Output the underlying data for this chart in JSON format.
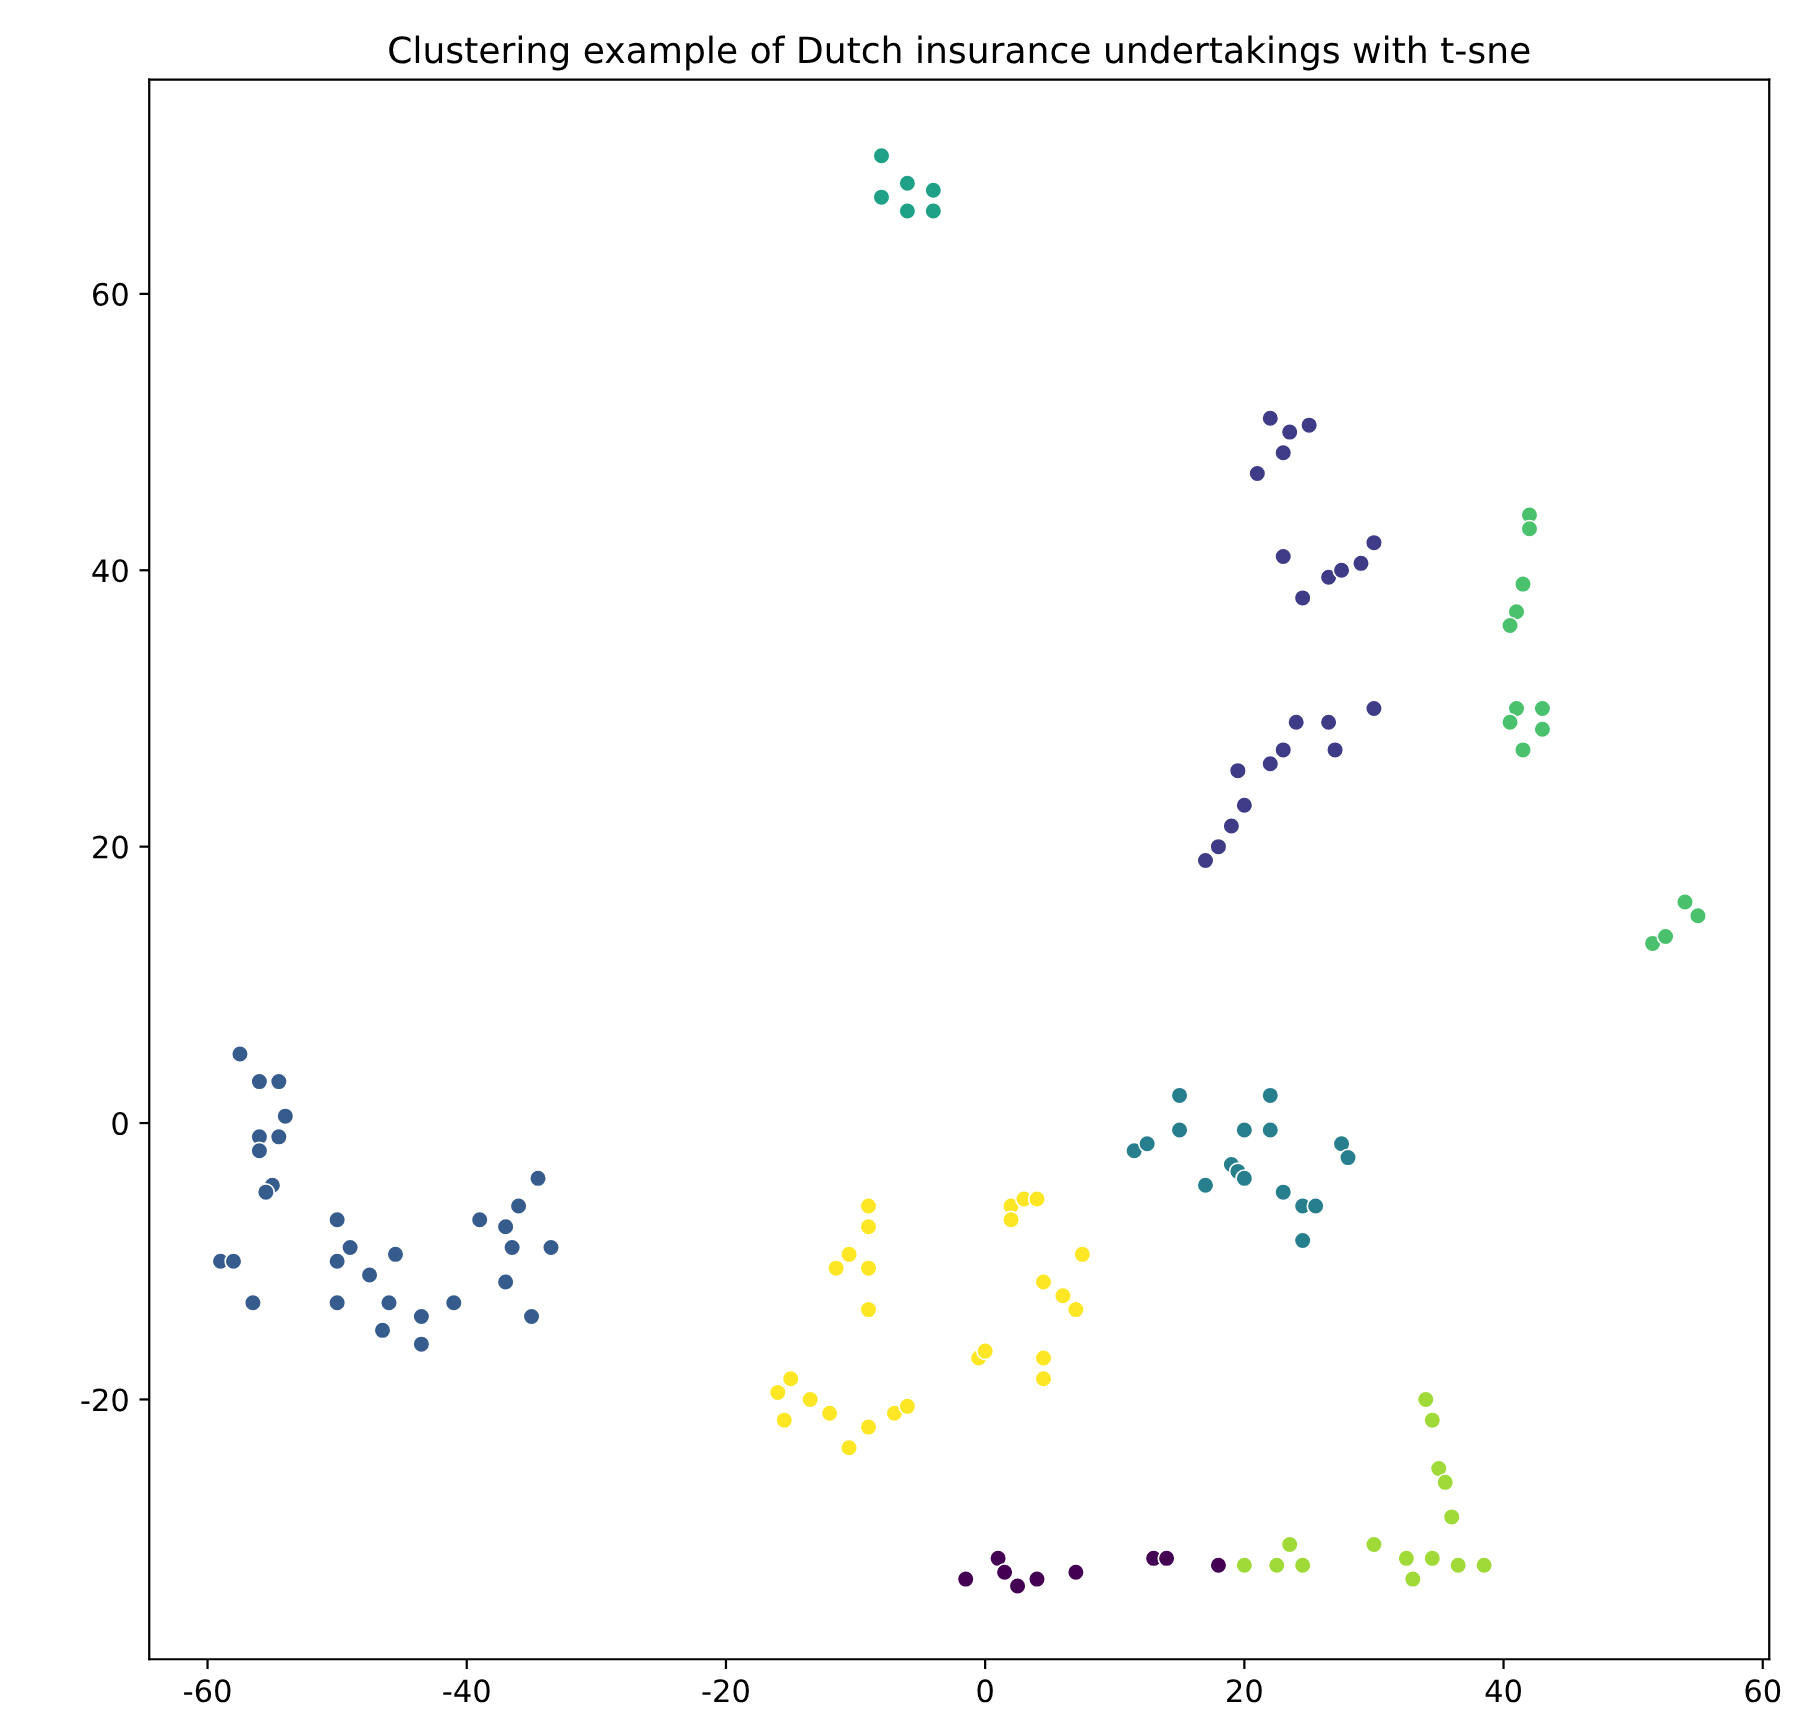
{
  "chart_data": {
    "type": "scatter",
    "title": "Clustering example of Dutch insurance undertakings with t-sne",
    "xlim": [
      -64.5,
      60.5
    ],
    "ylim": [
      -38.8,
      75.5
    ],
    "xticks": [
      -60,
      -40,
      -20,
      0,
      20,
      40,
      60
    ],
    "yticks": [
      -20,
      0,
      20,
      40,
      60
    ],
    "grid": false,
    "marker": "circle",
    "series": [
      {
        "color": "#440154",
        "x": [
          -1.5,
          1,
          1.5,
          2.5,
          4,
          7,
          13,
          14,
          18
        ],
        "values": [
          -33,
          -31.5,
          -32.5,
          -33.5,
          -33,
          -32.5,
          -31.5,
          -31.5,
          -32
        ]
      },
      {
        "color": "#3e3b87",
        "x": [
          22,
          23.5,
          25,
          23,
          21,
          23,
          24.5,
          26.5,
          27.5,
          29,
          30,
          17,
          18,
          19,
          20,
          19.5,
          22,
          23,
          24,
          26.5,
          27,
          30
        ],
        "values": [
          51,
          50,
          50.5,
          48.5,
          47,
          41,
          38,
          39.5,
          40,
          40.5,
          42,
          19,
          20,
          21.5,
          23,
          25.5,
          26,
          27,
          29,
          29,
          27,
          30
        ]
      },
      {
        "color": "#365c8d",
        "x": [
          -57.5,
          -56,
          -54.5,
          -54,
          -56,
          -54.5,
          -56,
          -55,
          -55.5,
          -59,
          -58,
          -56.5,
          -50,
          -50,
          -49,
          -47.5,
          -45.5,
          -50,
          -46,
          -46.5,
          -43.5,
          -43.5,
          -41,
          -39,
          -37,
          -36,
          -34.5,
          -36.5,
          -33.5,
          -37,
          -35
        ],
        "values": [
          5,
          3,
          3,
          0.5,
          -1,
          -1,
          -2,
          -4.5,
          -5,
          -10,
          -10,
          -13,
          -7,
          -10,
          -9,
          -11,
          -9.5,
          -13,
          -13,
          -15,
          -14,
          -16,
          -13,
          -7,
          -7.5,
          -6,
          -4,
          -9,
          -9,
          -11.5,
          -14
        ]
      },
      {
        "color": "#277f8e",
        "x": [
          11.5,
          12.5,
          15,
          15,
          19,
          20,
          22,
          22,
          19.5,
          20,
          17,
          23,
          24.5,
          25.5,
          27.5,
          28,
          24.5
        ],
        "values": [
          -2,
          -1.5,
          2,
          -0.5,
          -3,
          -0.5,
          -0.5,
          2,
          -3.5,
          -4,
          -4.5,
          -5,
          -6,
          -6,
          -1.5,
          -2.5,
          -8.5
        ]
      },
      {
        "color": "#1fa187",
        "x": [
          -8,
          -8,
          -6,
          -4,
          -6,
          -4
        ],
        "values": [
          70,
          67,
          68,
          67.5,
          66,
          66
        ]
      },
      {
        "color": "#4ac16d",
        "x": [
          42,
          42,
          41.5,
          41,
          40.5,
          41,
          43,
          40.5,
          43,
          41.5,
          51.5,
          52.5,
          54,
          55
        ],
        "values": [
          44,
          43,
          39,
          37,
          36,
          30,
          30,
          29,
          28.5,
          27,
          13,
          13.5,
          16,
          15
        ]
      },
      {
        "color": "#a0da39",
        "x": [
          34,
          34.5,
          35,
          35.5,
          36,
          30,
          32.5,
          33,
          34.5,
          36.5,
          38.5,
          20,
          22.5,
          23.5,
          24.5
        ],
        "values": [
          -20,
          -21.5,
          -25,
          -26,
          -28.5,
          -30.5,
          -31.5,
          -33,
          -31.5,
          -32,
          -32,
          -32,
          -32,
          -30.5,
          -32
        ]
      },
      {
        "color": "#fde725",
        "x": [
          -9,
          -9,
          -10.5,
          -11.5,
          -9,
          -9,
          2,
          3,
          4,
          2,
          7.5,
          4.5,
          6,
          7,
          4.5,
          4.5,
          -0.5,
          0,
          -16,
          -15,
          -13.5,
          -12,
          -15.5,
          -9,
          -10.5,
          -7,
          -6
        ],
        "values": [
          -6,
          -7.5,
          -9.5,
          -10.5,
          -10.5,
          -13.5,
          -6,
          -5.5,
          -5.5,
          -7,
          -9.5,
          -11.5,
          -12.5,
          -13.5,
          -17,
          -18.5,
          -17,
          -16.5,
          -19.5,
          -18.5,
          -20,
          -21,
          -21.5,
          -22,
          -23.5,
          -21,
          -20.5
        ]
      }
    ]
  }
}
